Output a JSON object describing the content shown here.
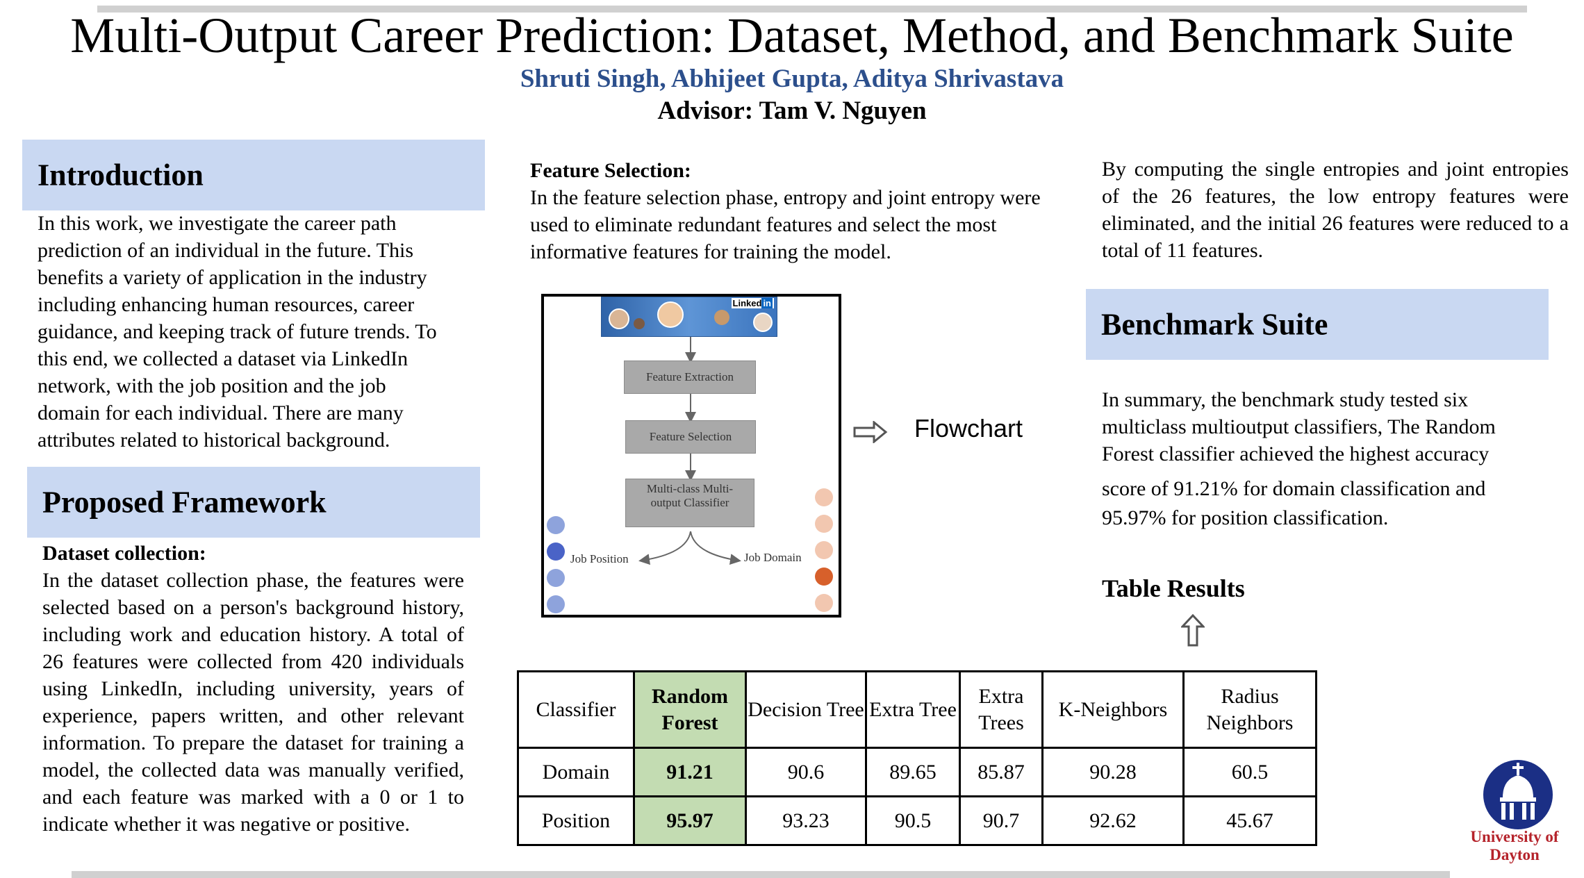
{
  "header": {
    "title": "Multi-Output Career Prediction: Dataset, Method, and Benchmark Suite",
    "authors": "Shruti Singh, Abhijeet Gupta, Aditya Shrivastava",
    "advisor": "Advisor:  Tam V. Nguyen"
  },
  "introduction": {
    "heading": "Introduction",
    "lines": [
      "In this work, we investigate the career path",
      "prediction of an individual in the future. This",
      "benefits a variety of  application in the industry",
      "including enhancing human resources,  career",
      "guidance, and keeping track of future trends. To",
      "this end,  we collected a dataset via LinkedIn",
      "network, with the job position and the job",
      "domain for each individual. There are many",
      "attributes related to historical background."
    ]
  },
  "framework": {
    "heading": "Proposed Framework",
    "dataset_title": "Dataset collection:",
    "dataset_text": "In the dataset collection phase, the features were selected based on a person's background history, including work and education history. A total of 26 features were collected from 420 individuals using LinkedIn, including university, years of experience, papers written, and other relevant information. To prepare the dataset for training a model, the collected data was manually verified, and each feature was marked with a 0 or 1 to indicate whether it was negative or positive."
  },
  "feature_selection": {
    "title": "Feature Selection:",
    "text": "In the feature selection phase, entropy and joint entropy were used to eliminate redundant features and select the most informative features for training the model."
  },
  "entropy_text": "By computing the single entropies and joint entropies of the 26 features, the low entropy features were eliminated, and the initial 26 features were reduced to a total of 11 features.",
  "flowchart": {
    "label": "Flowchart",
    "linkedin": "Linked",
    "linkedin_in": "in",
    "step1": "Feature Extraction",
    "step2": "Feature Selection",
    "step3": "Multi-class Multi-output Classifier",
    "out_left": "Job Position",
    "out_right": "Job Domain",
    "arrow_icon": "right-arrow-icon"
  },
  "benchmark": {
    "heading": "Benchmark Suite",
    "summary_lines": [
      "In summary, the benchmark study tested six",
      "multiclass multioutput classifiers, The Random",
      "Forest classifier achieved the highest accuracy",
      "score  of 91.21% for domain classification and",
      "95.97% for position classification."
    ],
    "table_title": "Table Results",
    "arrow_icon": "up-arrow-icon"
  },
  "table": {
    "headers": [
      "Classifier",
      "Random Forest",
      "Decision Tree",
      "Extra Tree",
      "Extra Trees",
      "K-Neighbors",
      "Radius Neighbors"
    ],
    "rows": [
      {
        "label": "Domain",
        "values": [
          "91.21",
          "90.6",
          "89.65",
          "85.87",
          "90.28",
          "60.5"
        ]
      },
      {
        "label": "Position",
        "values": [
          "95.97",
          "93.23",
          "90.5",
          "90.7",
          "92.62",
          "45.67"
        ]
      }
    ],
    "highlight_color": "#c3dcb2"
  },
  "logo": {
    "line1": "University of",
    "line2": "Dayton",
    "icon": "university-chapel-dome-icon"
  },
  "colors": {
    "section_bg": "#c9d8f2",
    "author_blue": "#2c4f8c",
    "logo_red": "#b5232b",
    "logo_blue": "#1b2f85"
  }
}
